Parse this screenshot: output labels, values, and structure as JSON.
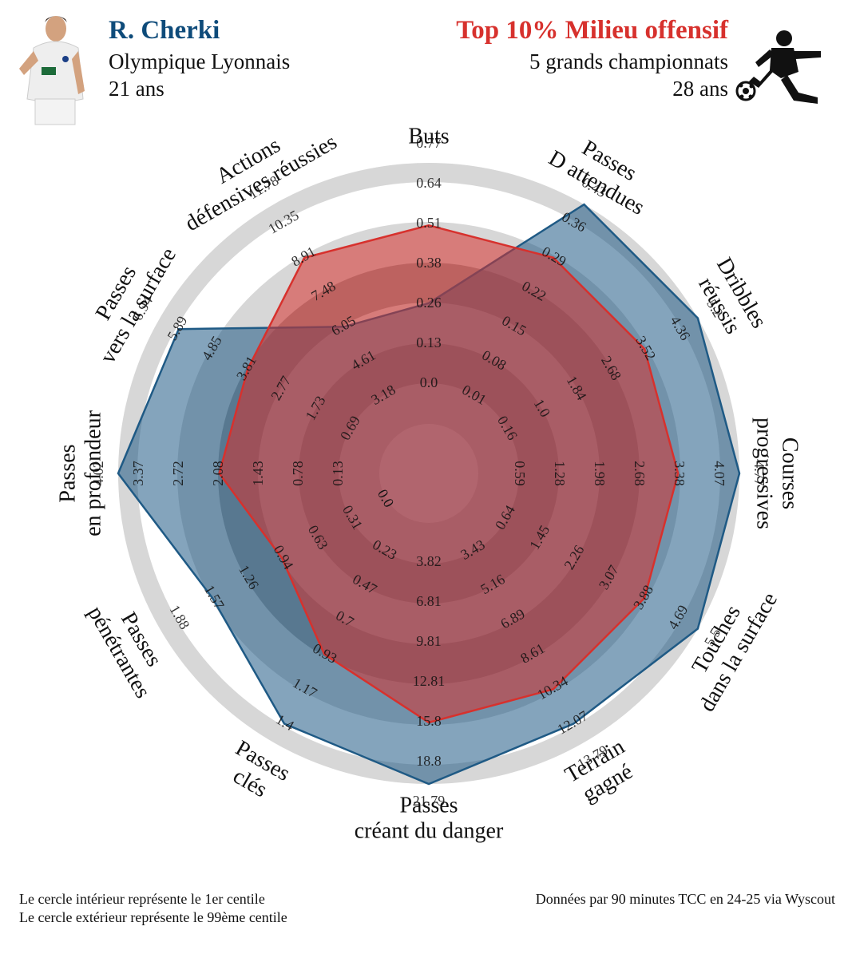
{
  "header": {
    "player_name": "R. Cherki",
    "team": "Olympique Lyonnais",
    "age": "21 ans",
    "comparison_title": "Top 10% Milieu offensif",
    "comparison_league": "5 grands championnats",
    "comparison_age": "28 ans"
  },
  "footer": {
    "inner_note": "Le cercle intérieur représente le 1er centile",
    "outer_note": "Le cercle extérieur représente le 99ème centile",
    "source": "Données par 90 minutes TCC en 24-25 via Wyscout"
  },
  "colors": {
    "player": "#1f5a85",
    "comparison": "#d7312d",
    "rings_light": "#d9d9d9",
    "rings_dark": "#9e9e9e"
  },
  "icons": {
    "avatar": "player-photo",
    "comparison": "footballer-kicking-icon"
  },
  "chart_data": {
    "type": "radar",
    "axes": [
      {
        "label": [
          "Buts"
        ],
        "ticks": [
          "0.0",
          "0.13",
          "0.26",
          "0.38",
          "0.51",
          "0.64",
          "0.77"
        ]
      },
      {
        "label": [
          "Passes",
          "D attendues"
        ],
        "ticks": [
          "0.01",
          "0.08",
          "0.15",
          "0.22",
          "0.29",
          "0.36",
          "0.43"
        ]
      },
      {
        "label": [
          "Dribbles",
          "réussis"
        ],
        "ticks": [
          "0.16",
          "1.0",
          "1.84",
          "2.68",
          "3.52",
          "4.36",
          "5.2"
        ]
      },
      {
        "label": [
          "Courses",
          "progressives"
        ],
        "ticks": [
          "0.59",
          "1.28",
          "1.98",
          "2.68",
          "3.38",
          "4.07",
          "4.77"
        ]
      },
      {
        "label": [
          "Touches",
          "dans la surface"
        ],
        "ticks": [
          "0.64",
          "1.45",
          "2.26",
          "3.07",
          "3.88",
          "4.69",
          "5.5"
        ]
      },
      {
        "label": [
          "Terrain",
          "gagné"
        ],
        "ticks": [
          "3.43",
          "5.16",
          "6.89",
          "8.61",
          "10.34",
          "12.07",
          "13.79"
        ]
      },
      {
        "label": [
          "Passes",
          "créant du danger"
        ],
        "ticks": [
          "3.82",
          "6.81",
          "9.81",
          "12.81",
          "15.8",
          "18.8",
          "21.79"
        ]
      },
      {
        "label": [
          "Passes",
          "clés"
        ],
        "ticks": [
          "0.23",
          "0.47",
          "0.7",
          "0.93",
          "1.17",
          "1.4",
          ""
        ]
      },
      {
        "label": [
          "Passes",
          "pénétrantes"
        ],
        "ticks": [
          "0.31",
          "0.63",
          "0.94",
          "1.26",
          "1.57",
          "1.88",
          ""
        ]
      },
      {
        "label": [
          "Passes",
          "en profondeur"
        ],
        "ticks": [
          "0.13",
          "0.78",
          "1.43",
          "2.08",
          "2.72",
          "3.37",
          "4.02"
        ]
      },
      {
        "label": [
          "Passes",
          "vers la surface"
        ],
        "ticks": [
          "0.69",
          "1.73",
          "2.77",
          "3.81",
          "4.85",
          "5.89",
          "6.94"
        ]
      },
      {
        "label": [
          "Actions",
          "défensives réussies"
        ],
        "ticks": [
          "3.18",
          "4.61",
          "6.05",
          "7.48",
          "8.91",
          "10.35",
          "11.78"
        ]
      }
    ],
    "ring_extra_tick": {
      "axis_index": 8,
      "value": "0.0"
    },
    "series": [
      {
        "name": "R. Cherki",
        "color": "#1f5a85",
        "values": [
          0.26,
          0.43,
          5.2,
          4.77,
          5.5,
          12.07,
          21.79,
          1.4,
          1.57,
          4.02,
          5.89,
          6.05
        ]
      },
      {
        "name": "Top 10% Milieu offensif",
        "color": "#d7312d",
        "values": [
          0.51,
          0.29,
          3.52,
          3.38,
          3.88,
          10.34,
          15.8,
          0.93,
          0.94,
          2.08,
          3.81,
          8.91
        ]
      }
    ]
  }
}
